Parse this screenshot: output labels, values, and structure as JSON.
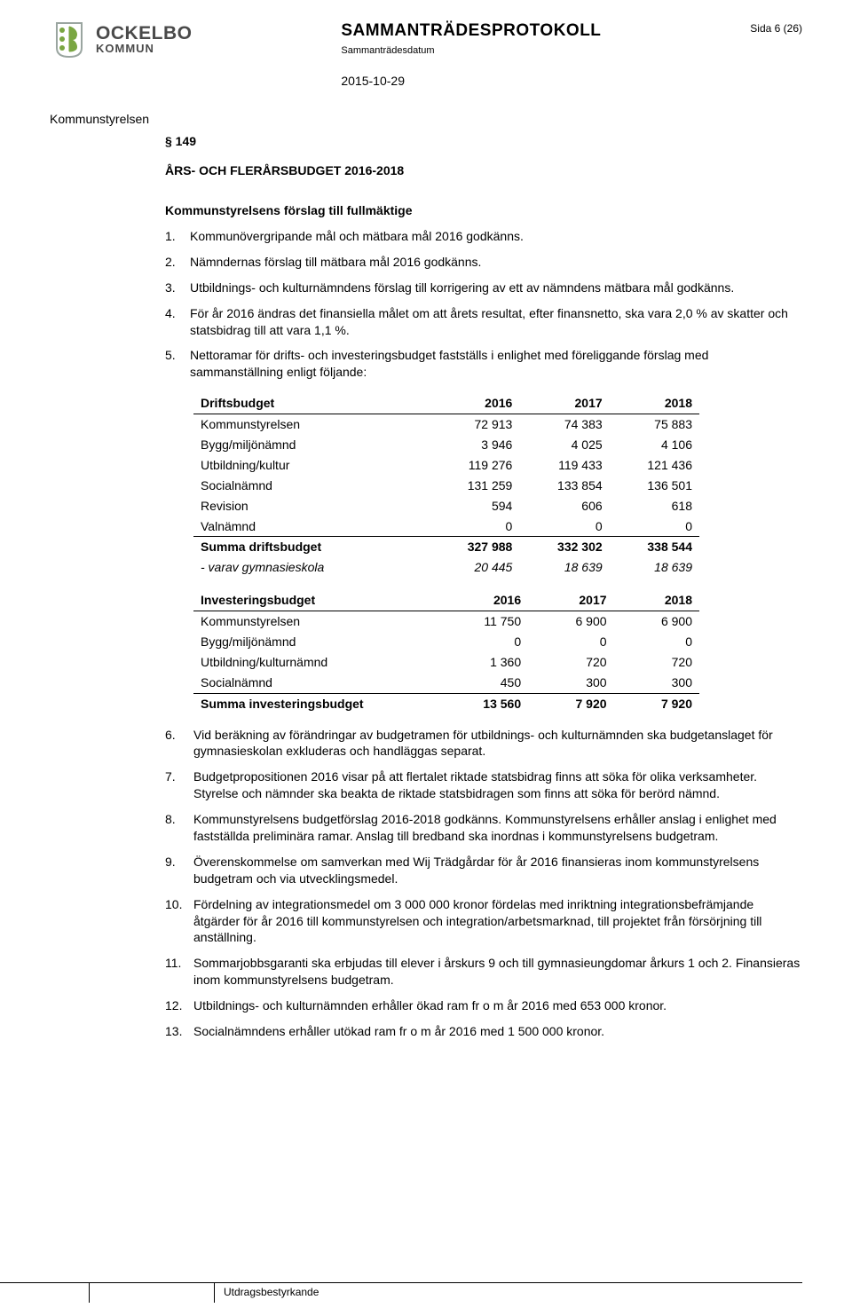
{
  "header": {
    "logo_name": "OCKELBO",
    "logo_sub": "KOMMUN",
    "protocol_title": "SAMMANTRÄDESPROTOKOLL",
    "protocol_sub": "Sammanträdesdatum",
    "protocol_date": "2015-10-29",
    "page_info": "Sida 6 (26)",
    "logo_colors": {
      "green": "#7aa642",
      "gray_stroke": "#9aa5a0"
    }
  },
  "body": {
    "committee": "Kommunstyrelsen",
    "section_no": "§ 149",
    "doc_title": "ÅRS- OCH FLERÅRSBUDGET 2016-2018",
    "subheading": "Kommunstyrelsens förslag till fullmäktige"
  },
  "list1": [
    {
      "n": "1.",
      "t": "Kommunövergripande mål och mätbara mål 2016 godkänns."
    },
    {
      "n": "2.",
      "t": "Nämndernas förslag till mätbara mål 2016 godkänns."
    },
    {
      "n": "3.",
      "t": "Utbildnings- och kulturnämndens förslag till korrigering av ett av nämndens mätbara mål godkänns."
    },
    {
      "n": "4.",
      "t": "För år 2016 ändras det finansiella målet om att årets resultat, efter finansnetto, ska vara 2,0 % av skatter och statsbidrag till att vara 1,1 %."
    },
    {
      "n": "5.",
      "t": "Nettoramar för drifts- och investeringsbudget fastställs i enlighet med föreliggande förslag med sammanställning enligt följande:"
    }
  ],
  "drift": {
    "head": [
      "Driftsbudget",
      "2016",
      "2017",
      "2018"
    ],
    "rows": [
      {
        "label": "Kommunstyrelsen",
        "v": [
          "72 913",
          "74 383",
          "75 883"
        ]
      },
      {
        "label": "Bygg/miljönämnd",
        "v": [
          "3 946",
          "4 025",
          "4 106"
        ]
      },
      {
        "label": "Utbildning/kultur",
        "v": [
          "119 276",
          "119 433",
          "121 436"
        ]
      },
      {
        "label": "Socialnämnd",
        "v": [
          "131 259",
          "133 854",
          "136 501"
        ]
      },
      {
        "label": "Revision",
        "v": [
          "594",
          "606",
          "618"
        ]
      },
      {
        "label": "Valnämnd",
        "v": [
          "0",
          "0",
          "0"
        ],
        "underline": true
      },
      {
        "label": "Summa driftsbudget",
        "v": [
          "327 988",
          "332 302",
          "338 544"
        ],
        "bold": true
      },
      {
        "label": "- varav gymnasieskola",
        "v": [
          "20 445",
          "18 639",
          "18 639"
        ],
        "italic": true
      }
    ]
  },
  "invest": {
    "head": [
      "Investeringsbudget",
      "2016",
      "2017",
      "2018"
    ],
    "rows": [
      {
        "label": "Kommunstyrelsen",
        "v": [
          "11 750",
          "6 900",
          "6 900"
        ]
      },
      {
        "label": "Bygg/miljönämnd",
        "v": [
          "0",
          "0",
          "0"
        ]
      },
      {
        "label": "Utbildning/kulturnämnd",
        "v": [
          "1 360",
          "720",
          "720"
        ]
      },
      {
        "label": "Socialnämnd",
        "v": [
          "450",
          "300",
          "300"
        ],
        "underline": true
      },
      {
        "label": "Summa investeringsbudget",
        "v": [
          "13 560",
          "7 920",
          "7 920"
        ],
        "bold": true
      }
    ]
  },
  "list2": [
    {
      "n": "6.",
      "t": "Vid beräkning av förändringar av budgetramen för utbildnings- och kulturnämnden ska budgetanslaget för gymnasieskolan exkluderas och handläggas separat."
    },
    {
      "n": "7.",
      "t": "Budgetpropositionen 2016 visar på att flertalet riktade statsbidrag finns att söka för olika verksamheter. Styrelse och nämnder ska beakta de riktade statsbidragen som finns att söka för berörd nämnd."
    },
    {
      "n": "8.",
      "t": "Kommunstyrelsens budgetförslag 2016-2018 godkänns. Kommunstyrelsens erhåller anslag i enlighet med fastställda preliminära ramar. Anslag till bredband ska inordnas i kommunstyrelsens budgetram."
    },
    {
      "n": "9.",
      "t": "Överenskommelse om samverkan med Wij Trädgårdar för år 2016 finansieras inom kommunstyrelsens budgetram och via utvecklingsmedel."
    },
    {
      "n": "10.",
      "t": "Fördelning av integrationsmedel om 3 000 000 kronor fördelas med inriktning integrationsbefrämjande åtgärder för år 2016 till kommunstyrelsen och integration/arbetsmarknad, till projektet från försörjning till anställning."
    },
    {
      "n": "11.",
      "t": "Sommarjobbsgaranti ska erbjudas till elever i årskurs 9 och till gymnasieungdomar årkurs 1 och 2. Finansieras inom kommunstyrelsens budgetram."
    },
    {
      "n": "12.",
      "t": "Utbildnings- och kulturnämnden erhåller ökad ram fr o m år 2016 med 653 000 kronor."
    },
    {
      "n": "13.",
      "t": "Socialnämndens erhåller utökad ram fr o m år 2016 med 1 500 000 kronor."
    }
  ],
  "footer": {
    "label": "Utdragsbestyrkande"
  }
}
